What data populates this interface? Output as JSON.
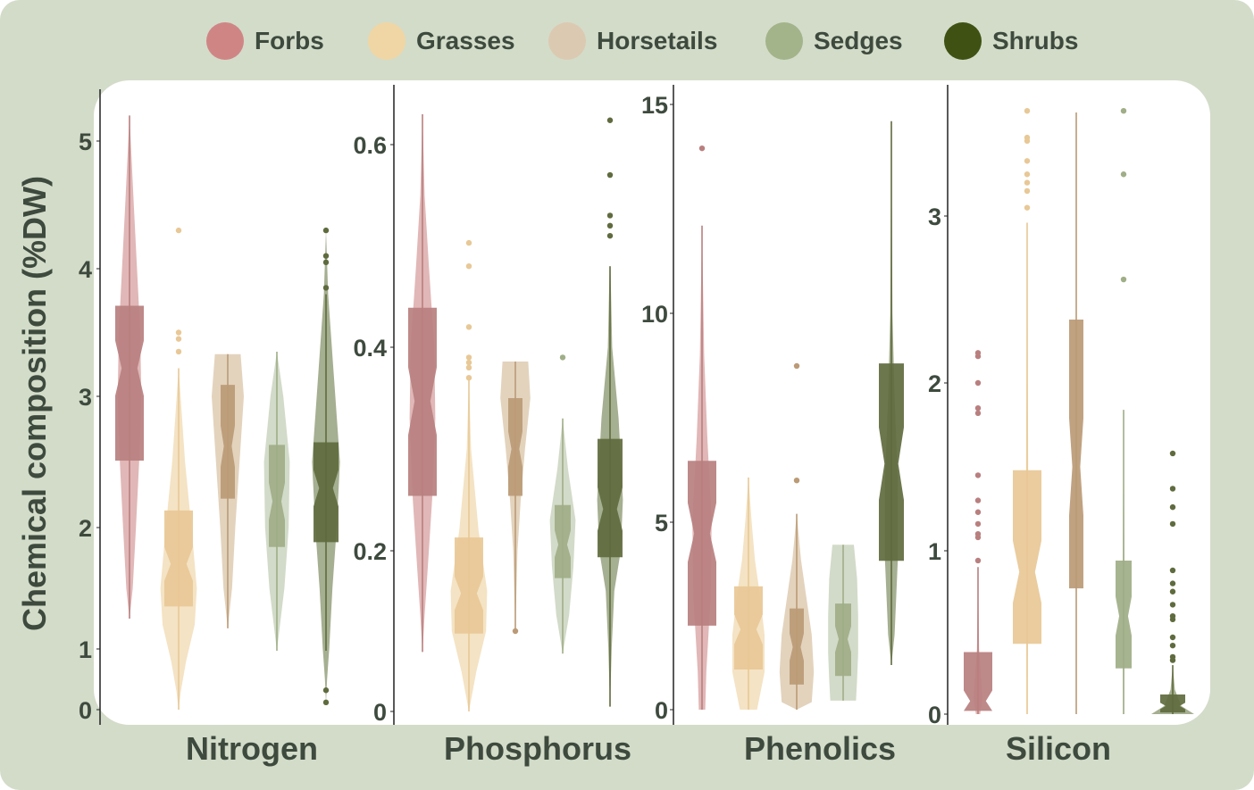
{
  "legend": [
    {
      "label": "Forbs",
      "color": "#d08585"
    },
    {
      "label": "Grasses",
      "color": "#f0d6a4"
    },
    {
      "label": "Horsetails",
      "color": "#dcc9b1"
    },
    {
      "label": "Sedges",
      "color": "#a3b48a"
    },
    {
      "label": "Shrubs",
      "color": "#3f5214"
    }
  ],
  "chart_data": {
    "type": "violin+box",
    "ylabel": "Chemical composition (%DW)",
    "groups": [
      "Forbs",
      "Grasses",
      "Horsetails",
      "Sedges",
      "Shrubs"
    ],
    "violin_colors": [
      "#d9a5a5",
      "#f1dcb5",
      "#dcc8ad",
      "#c7d2bb",
      "#8e9b76"
    ],
    "box_colors": [
      "#b97f7f",
      "#e8c896",
      "#bb9a76",
      "#9fae87",
      "#5f6b3e"
    ],
    "panels": [
      {
        "title": "Nitrogen",
        "ticks": [
          "0",
          "1",
          "2",
          "3",
          "4",
          "5"
        ],
        "tick_values": [
          0,
          1,
          2,
          3,
          4,
          5
        ],
        "groups": [
          {
            "q1": 2.51,
            "median": 3.22,
            "q3": 3.71,
            "whisker": [
              1.25,
              5.2
            ],
            "outliers": [],
            "violin": [
              [
                5.2,
                0
              ],
              [
                4.5,
                0.2
              ],
              [
                4.0,
                0.35
              ],
              [
                3.5,
                0.5
              ],
              [
                3.0,
                0.55
              ],
              [
                2.5,
                0.45
              ],
              [
                2.0,
                0.3
              ],
              [
                1.5,
                0.15
              ],
              [
                1.25,
                0
              ]
            ]
          },
          {
            "q1": 1.35,
            "median": 1.7,
            "q3": 2.13,
            "whisker": [
              0.0,
              3.22
            ],
            "outliers": [
              3.35,
              3.45,
              3.5,
              4.3
            ],
            "violin": [
              [
                3.22,
                0
              ],
              [
                2.5,
                0.3
              ],
              [
                2.0,
                0.6
              ],
              [
                1.5,
                0.85
              ],
              [
                1.2,
                0.75
              ],
              [
                0.8,
                0.35
              ],
              [
                0.3,
                0.1
              ],
              [
                0,
                0
              ]
            ]
          },
          {
            "q1": 2.22,
            "median": 2.62,
            "q3": 3.09,
            "whisker": [
              1.17,
              3.33
            ],
            "outliers": [],
            "violin": [
              [
                3.33,
                0.6
              ],
              [
                3.0,
                0.75
              ],
              [
                2.5,
                0.55
              ],
              [
                2.0,
                0.35
              ],
              [
                1.5,
                0.2
              ],
              [
                1.17,
                0
              ]
            ]
          },
          {
            "q1": 1.84,
            "median": 2.2,
            "q3": 2.63,
            "whisker": [
              0.97,
              3.35
            ],
            "outliers": [],
            "violin": [
              [
                3.35,
                0
              ],
              [
                3.0,
                0.3
              ],
              [
                2.5,
                0.6
              ],
              [
                2.0,
                0.55
              ],
              [
                1.5,
                0.35
              ],
              [
                0.97,
                0
              ]
            ]
          },
          {
            "q1": 1.88,
            "median": 2.3,
            "q3": 2.65,
            "whisker": [
              0.97,
              3.8
            ],
            "outliers": [
              4.3,
              4.1,
              4.05,
              3.85,
              0.32,
              0.12
            ],
            "violin": [
              [
                4.3,
                0
              ],
              [
                3.8,
                0.1
              ],
              [
                3.2,
                0.35
              ],
              [
                2.5,
                0.65
              ],
              [
                2.0,
                0.5
              ],
              [
                1.5,
                0.3
              ],
              [
                1.0,
                0.15
              ],
              [
                0.5,
                0.05
              ],
              [
                0.1,
                0
              ]
            ]
          }
        ]
      },
      {
        "title": "Phosphorus",
        "ticks": [
          "0",
          "0.2",
          "0.4",
          "0.6"
        ],
        "tick_values": [
          0,
          0.2,
          0.4,
          0.6
        ],
        "groups": [
          {
            "q1": 0.254,
            "median": 0.347,
            "q3": 0.439,
            "whisker": [
              0.074,
              0.63
            ],
            "outliers": [],
            "violin": [
              [
                0.63,
                0
              ],
              [
                0.55,
                0.1
              ],
              [
                0.48,
                0.3
              ],
              [
                0.4,
                0.55
              ],
              [
                0.33,
                0.6
              ],
              [
                0.25,
                0.45
              ],
              [
                0.18,
                0.25
              ],
              [
                0.12,
                0.1
              ],
              [
                0.074,
                0
              ]
            ]
          },
          {
            "q1": 0.097,
            "median": 0.147,
            "q3": 0.213,
            "whisker": [
              0.0,
              0.37
            ],
            "outliers": [
              0.37,
              0.38,
              0.385,
              0.39,
              0.42,
              0.48,
              0.503
            ],
            "violin": [
              [
                0.37,
                0
              ],
              [
                0.3,
                0.1
              ],
              [
                0.22,
                0.45
              ],
              [
                0.15,
                0.85
              ],
              [
                0.1,
                0.8
              ],
              [
                0.05,
                0.35
              ],
              [
                0,
                0
              ]
            ]
          },
          {
            "q1": 0.254,
            "median": 0.3,
            "q3": 0.35,
            "whisker": [
              0.1,
              0.386
            ],
            "outliers": [
              0.1
            ],
            "violin": [
              [
                0.386,
                0.6
              ],
              [
                0.35,
                0.7
              ],
              [
                0.3,
                0.45
              ],
              [
                0.25,
                0.25
              ],
              [
                0.2,
                0.1
              ],
              [
                0.15,
                0.05
              ],
              [
                0.1,
                0
              ]
            ]
          },
          {
            "q1": 0.166,
            "median": 0.206,
            "q3": 0.245,
            "whisker": [
              0.072,
              0.33
            ],
            "outliers": [
              0.39
            ],
            "violin": [
              [
                0.33,
                0
              ],
              [
                0.28,
                0.25
              ],
              [
                0.23,
                0.6
              ],
              [
                0.18,
                0.5
              ],
              [
                0.12,
                0.3
              ],
              [
                0.072,
                0
              ]
            ]
          },
          {
            "q1": 0.192,
            "median": 0.241,
            "q3": 0.31,
            "whisker": [
              0.006,
              0.48
            ],
            "outliers": [
              0.51,
              0.52,
              0.53,
              0.57,
              0.624
            ],
            "violin": [
              [
                0.48,
                0.02
              ],
              [
                0.4,
                0.1
              ],
              [
                0.33,
                0.4
              ],
              [
                0.25,
                0.6
              ],
              [
                0.2,
                0.5
              ],
              [
                0.15,
                0.2
              ],
              [
                0.08,
                0.08
              ],
              [
                0.006,
                0
              ]
            ]
          }
        ]
      },
      {
        "title": "Phenolics",
        "ticks": [
          "0",
          "5",
          "10",
          "15"
        ],
        "tick_values": [
          0,
          5,
          10,
          15
        ],
        "groups": [
          {
            "q1": 2.24,
            "median": 4.7,
            "q3": 6.47,
            "whisker": [
              0,
              12.1
            ],
            "outliers": [
              13.95
            ],
            "violin": [
              [
                12.1,
                0
              ],
              [
                9,
                0.1
              ],
              [
                7,
                0.25
              ],
              [
                5,
                0.45
              ],
              [
                3,
                0.4
              ],
              [
                1,
                0.2
              ],
              [
                0,
                0.15
              ]
            ]
          },
          {
            "q1": 1.07,
            "median": 2.14,
            "q3": 3.29,
            "whisker": [
              0,
              6.07
            ],
            "outliers": [],
            "violin": [
              [
                6.07,
                0
              ],
              [
                5,
                0.15
              ],
              [
                4,
                0.3
              ],
              [
                3,
                0.55
              ],
              [
                2,
                0.75
              ],
              [
                1,
                0.75
              ],
              [
                0,
                0.4
              ]
            ]
          },
          {
            "q1": 0.67,
            "median": 1.67,
            "q3": 2.7,
            "whisker": [
              0,
              5.2
            ],
            "outliers": [
              6.0,
              8.74
            ],
            "violin": [
              [
                5.2,
                0
              ],
              [
                4,
                0.2
              ],
              [
                3,
                0.45
              ],
              [
                2,
                0.7
              ],
              [
                1,
                0.8
              ],
              [
                0.2,
                0.7
              ],
              [
                0,
                0
              ]
            ]
          },
          {
            "q1": 0.9,
            "median": 1.88,
            "q3": 2.83,
            "whisker": [
              0.24,
              4.4
            ],
            "outliers": [],
            "violin": [
              [
                4.4,
                0.5
              ],
              [
                3.5,
                0.65
              ],
              [
                2.5,
                0.7
              ],
              [
                1.5,
                0.7
              ],
              [
                0.8,
                0.65
              ],
              [
                0.24,
                0.6
              ]
            ]
          },
          {
            "q1": 3.97,
            "median": 6.4,
            "q3": 8.8,
            "whisker": [
              1.19,
              14.6
            ],
            "outliers": [],
            "violin": [
              [
                14.6,
                0
              ],
              [
                10,
                0.05
              ],
              [
                8,
                0.15
              ],
              [
                6,
                0.3
              ],
              [
                4,
                0.3
              ],
              [
                2,
                0.15
              ],
              [
                1.19,
                0
              ]
            ]
          }
        ]
      },
      {
        "title": "Silicon",
        "ticks": [
          "0",
          "1",
          "2",
          "3"
        ],
        "tick_values": [
          0,
          1,
          2,
          3
        ],
        "groups": [
          {
            "q1": 0.02,
            "median": 0.08,
            "q3": 0.38,
            "whisker": [
              0,
              0.9
            ],
            "outliers": [
              0.94,
              1.08,
              1.1,
              1.16,
              1.23,
              1.3,
              1.45,
              1.82,
              1.85,
              2.0,
              2.16,
              2.18
            ],
            "violin": [
              [
                0.9,
                0
              ],
              [
                0.4,
                0.05
              ],
              [
                0.1,
                0.2
              ],
              [
                0,
                0.1
              ]
            ]
          },
          {
            "q1": 0.43,
            "median": 0.87,
            "q3": 1.48,
            "whisker": [
              0,
              2.96
            ],
            "outliers": [
              3.05,
              3.15,
              3.2,
              3.25,
              3.33,
              3.45,
              3.47,
              3.63
            ],
            "violin": [
              [
                2.96,
                0
              ],
              [
                1.5,
                0.05
              ],
              [
                0,
                0.03
              ]
            ]
          },
          {
            "q1": 0.77,
            "median": 1.5,
            "q3": 2.38,
            "whisker": [
              0,
              3.62
            ],
            "outliers": [],
            "violin": [
              [
                3.62,
                0
              ],
              [
                0,
                0.02
              ]
            ]
          },
          {
            "q1": 0.28,
            "median": 0.6,
            "q3": 0.94,
            "whisker": [
              0,
              1.84
            ],
            "outliers": [
              2.62,
              3.25,
              3.63
            ],
            "violin": [
              [
                1.84,
                0
              ],
              [
                0.8,
                0.05
              ],
              [
                0,
                0.03
              ]
            ]
          },
          {
            "q1": 0.01,
            "median": 0.05,
            "q3": 0.12,
            "whisker": [
              0,
              0.3
            ],
            "outliers": [
              0.33,
              0.35,
              0.42,
              0.47,
              0.58,
              0.6,
              0.67,
              0.75,
              0.8,
              0.88,
              1.16,
              1.26,
              1.37,
              1.58
            ],
            "violin": [
              [
                0.3,
                0
              ],
              [
                0.15,
                0.1
              ],
              [
                0.05,
                0.4
              ],
              [
                0,
                1
              ]
            ]
          }
        ]
      }
    ]
  }
}
